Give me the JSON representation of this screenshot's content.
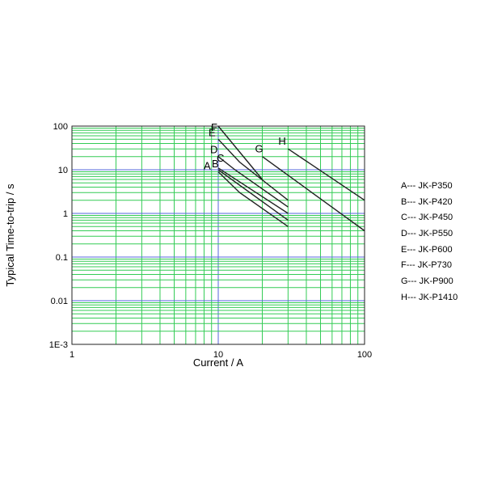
{
  "chart_data": {
    "type": "line",
    "xlabel": "Current / A",
    "ylabel": "Typical Time-to-trip / s",
    "x_scale": "log",
    "y_scale": "log",
    "xlim": [
      1,
      100
    ],
    "ylim": [
      0.001,
      100
    ],
    "x_ticks": [
      "1",
      "10",
      "100"
    ],
    "y_ticks": [
      "100",
      "10",
      "1",
      "0.1",
      "0.01",
      "1E-3"
    ],
    "grid": true,
    "colors": {
      "minor_grid": "#33cc55",
      "decade_grid": "#5566dd",
      "curve": "#222222",
      "frame": "#222222"
    },
    "series": [
      {
        "name": "A",
        "legend": "A--- JK-P350",
        "x": [
          10,
          14,
          30
        ],
        "y": [
          9,
          3,
          0.5
        ]
      },
      {
        "name": "B",
        "legend": "B--- JK-P420",
        "x": [
          10,
          30
        ],
        "y": [
          10,
          0.7
        ]
      },
      {
        "name": "C",
        "legend": "C--- JK-P450",
        "x": [
          10,
          30
        ],
        "y": [
          11,
          1.0
        ]
      },
      {
        "name": "D",
        "legend": "D--- JK-P550",
        "x": [
          10,
          13,
          30
        ],
        "y": [
          20,
          10,
          1.4
        ]
      },
      {
        "name": "E",
        "legend": "E--- JK-P600",
        "x": [
          10,
          14,
          30
        ],
        "y": [
          50,
          15,
          2
        ]
      },
      {
        "name": "F",
        "legend": "F--- JK-P730",
        "x": [
          10,
          20
        ],
        "y": [
          100,
          6
        ]
      },
      {
        "name": "G",
        "legend": "G--- JK-P900",
        "x": [
          20,
          100
        ],
        "y": [
          20,
          0.4
        ]
      },
      {
        "name": "H",
        "legend": "H--- JK-P1410",
        "x": [
          30,
          100
        ],
        "y": [
          30,
          2
        ]
      }
    ]
  }
}
